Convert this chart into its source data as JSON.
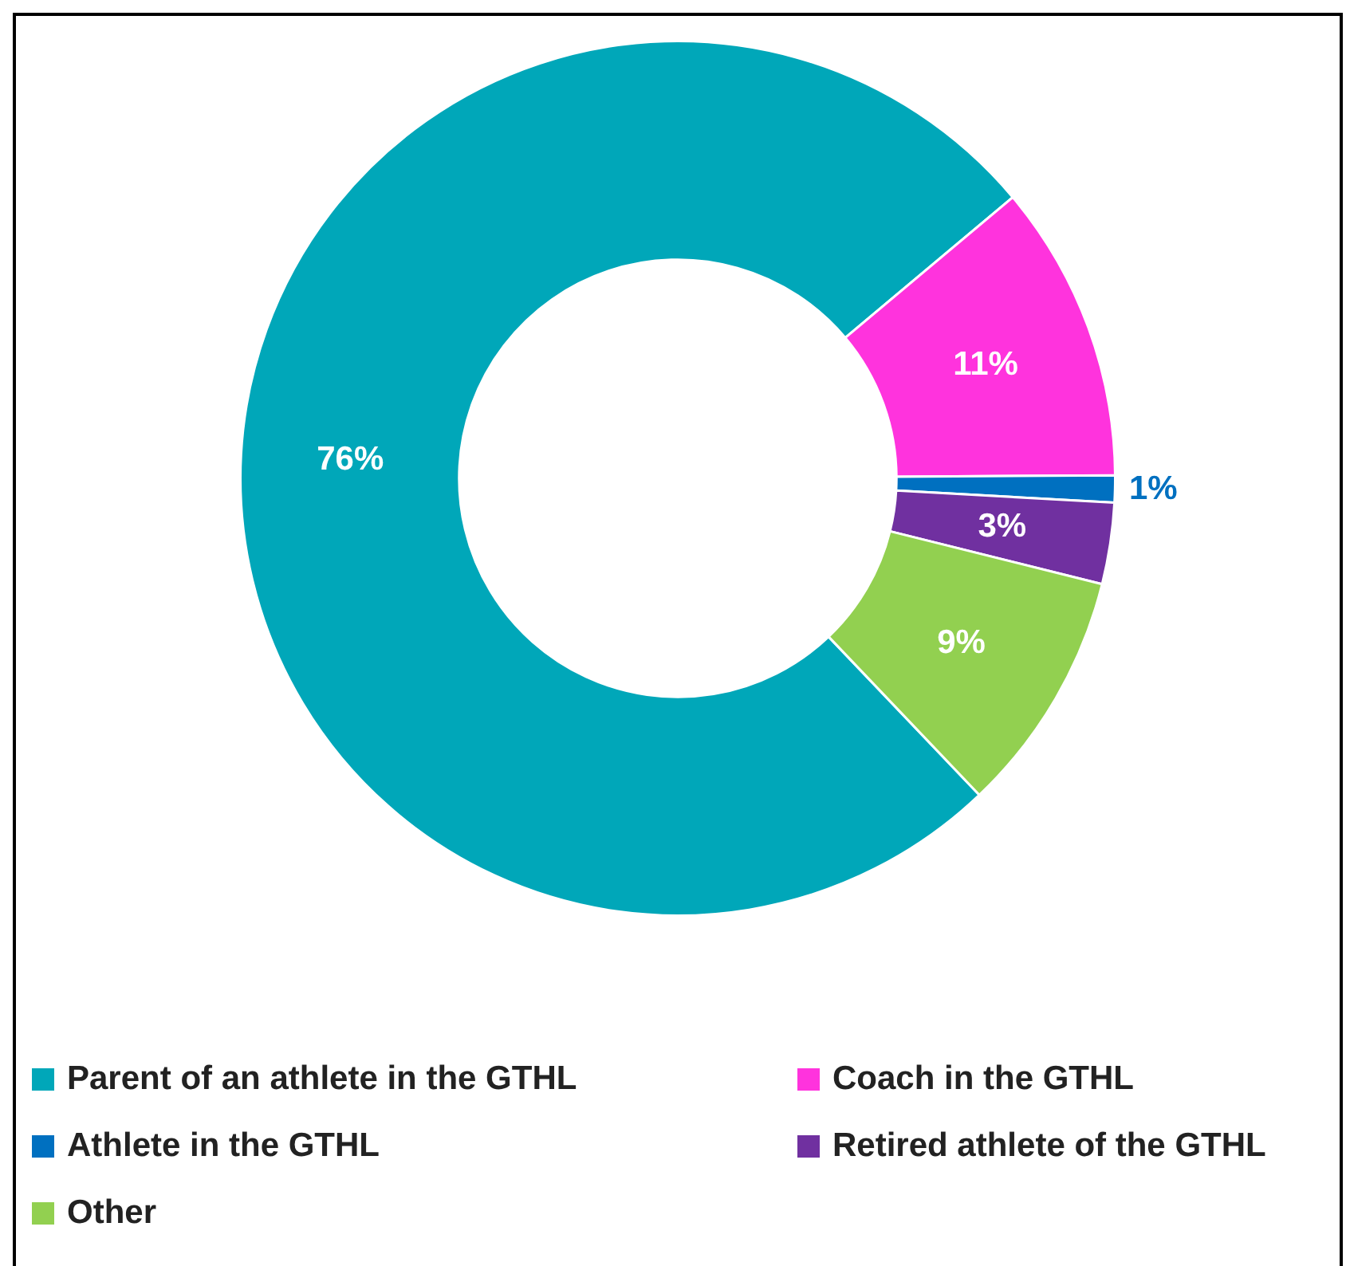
{
  "chart_data": {
    "type": "donut",
    "categories": [
      "Parent of an athlete in the GTHL",
      "Coach in the GTHL",
      "Athlete in the GTHL",
      "Retired athlete of the GTHL",
      "Other"
    ],
    "values": [
      76,
      11,
      1,
      3,
      9
    ],
    "value_labels": [
      "76%",
      "11%",
      "1%",
      "3%",
      "9%"
    ],
    "colors": [
      "#00a7b9",
      "#ff33dd",
      "#0070c0",
      "#7030a0",
      "#92d050"
    ],
    "legend": "bottom"
  }
}
